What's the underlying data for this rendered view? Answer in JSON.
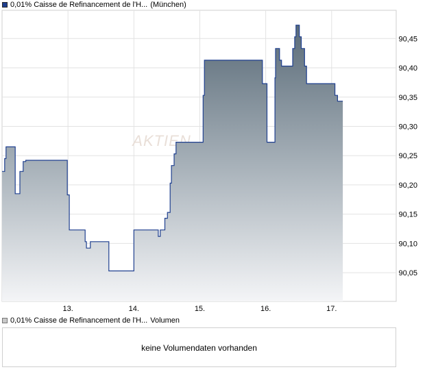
{
  "price_legend": {
    "name": "0,01% Caisse de Refinancement de l'H...",
    "exchange": "(München)",
    "color": "#1e3f8f"
  },
  "volume_legend": {
    "name": "0,01% Caisse de Refinancement de l'H...",
    "label": "Volumen"
  },
  "volume_panel": {
    "message": "keine Volumendaten vorhanden"
  },
  "watermark": "AKTIEN",
  "chart_data": {
    "type": "area",
    "x_tick_labels": [
      "13.",
      "14.",
      "15.",
      "16.",
      "17."
    ],
    "y_tick_labels": [
      "90,05",
      "90,10",
      "90,15",
      "90,20",
      "90,25",
      "90,30",
      "90,35",
      "90,40",
      "90,45"
    ],
    "y_ticks": [
      90.05,
      90.1,
      90.15,
      90.2,
      90.25,
      90.3,
      90.35,
      90.4,
      90.45
    ],
    "ylim": [
      90.008,
      90.496
    ],
    "xlim": [
      12.0,
      17.98
    ],
    "grid": true,
    "series": [
      {
        "name": "0,01% Caisse de Refinancement de l'H...",
        "step": true,
        "points": [
          [
            12.0,
            90.223
          ],
          [
            12.04,
            90.223
          ],
          [
            12.04,
            90.245
          ],
          [
            12.06,
            90.245
          ],
          [
            12.06,
            90.265
          ],
          [
            12.2,
            90.265
          ],
          [
            12.2,
            90.185
          ],
          [
            12.27,
            90.185
          ],
          [
            12.27,
            90.223
          ],
          [
            12.32,
            90.223
          ],
          [
            12.32,
            90.24
          ],
          [
            12.36,
            90.24
          ],
          [
            12.36,
            90.242
          ],
          [
            12.99,
            90.242
          ],
          [
            12.99,
            90.183
          ],
          [
            13.02,
            90.183
          ],
          [
            13.02,
            90.123
          ],
          [
            13.26,
            90.123
          ],
          [
            13.26,
            90.103
          ],
          [
            13.28,
            90.103
          ],
          [
            13.28,
            90.092
          ],
          [
            13.34,
            90.092
          ],
          [
            13.34,
            90.103
          ],
          [
            13.62,
            90.103
          ],
          [
            13.62,
            90.053
          ],
          [
            14.0,
            90.053
          ],
          [
            14.0,
            90.123
          ],
          [
            14.37,
            90.123
          ],
          [
            14.37,
            90.112
          ],
          [
            14.4,
            90.112
          ],
          [
            14.4,
            90.123
          ],
          [
            14.47,
            90.123
          ],
          [
            14.47,
            90.143
          ],
          [
            14.51,
            90.143
          ],
          [
            14.51,
            90.153
          ],
          [
            14.55,
            90.153
          ],
          [
            14.55,
            90.203
          ],
          [
            14.57,
            90.203
          ],
          [
            14.57,
            90.233
          ],
          [
            14.61,
            90.233
          ],
          [
            14.61,
            90.253
          ],
          [
            14.64,
            90.253
          ],
          [
            14.64,
            90.273
          ],
          [
            15.05,
            90.273
          ],
          [
            15.05,
            90.353
          ],
          [
            15.07,
            90.353
          ],
          [
            15.07,
            90.413
          ],
          [
            15.95,
            90.413
          ],
          [
            15.95,
            90.373
          ],
          [
            16.02,
            90.373
          ],
          [
            16.02,
            90.273
          ],
          [
            16.14,
            90.273
          ],
          [
            16.14,
            90.383
          ],
          [
            16.15,
            90.383
          ],
          [
            16.15,
            90.433
          ],
          [
            16.21,
            90.433
          ],
          [
            16.21,
            90.413
          ],
          [
            16.24,
            90.413
          ],
          [
            16.24,
            90.403
          ],
          [
            16.41,
            90.403
          ],
          [
            16.41,
            90.433
          ],
          [
            16.44,
            90.433
          ],
          [
            16.44,
            90.453
          ],
          [
            16.46,
            90.453
          ],
          [
            16.46,
            90.473
          ],
          [
            16.51,
            90.473
          ],
          [
            16.51,
            90.453
          ],
          [
            16.54,
            90.453
          ],
          [
            16.54,
            90.433
          ],
          [
            16.59,
            90.433
          ],
          [
            16.59,
            90.403
          ],
          [
            16.62,
            90.403
          ],
          [
            16.62,
            90.373
          ],
          [
            17.05,
            90.373
          ],
          [
            17.05,
            90.353
          ],
          [
            17.09,
            90.353
          ],
          [
            17.09,
            90.343
          ],
          [
            17.17,
            90.343
          ]
        ]
      }
    ]
  }
}
